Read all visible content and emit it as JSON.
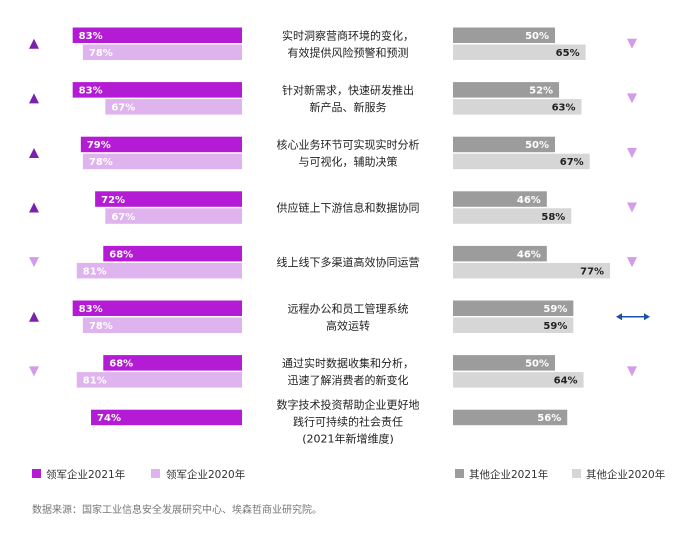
{
  "colors": {
    "leader_2021": "#B31BD4",
    "leader_2020": "#DEB3EE",
    "others_2021": "#9C9C9C",
    "others_2020": "#D6D6D6",
    "triangle": "#D39BEA",
    "triangle_solid": "#7A22B0",
    "arrow": "#1F4FA8"
  },
  "chart_data": {
    "type": "bar",
    "categories": [
      "实时洞察营商环境的变化，\n有效提供风险预警和预测",
      "针对新需求，快速研发推出\n新产品、新服务",
      "核心业务环节可实现实时分析\n与可视化，辅助决策",
      "供应链上下游信息和数据协同",
      "线上线下多渠道高效协同运营",
      "远程办公和员工管理系统\n高效运转",
      "通过实时数据收集和分析，\n迅速了解消费者的新变化",
      "数字技术投资帮助企业更好地\n践行可持续的社会责任\n(2021年新增维度)"
    ],
    "series": [
      {
        "name": "领军企业2021年",
        "values": [
          83,
          83,
          79,
          72,
          68,
          83,
          68,
          74
        ]
      },
      {
        "name": "领军企业2020年",
        "values": [
          78,
          67,
          78,
          67,
          81,
          78,
          81,
          null
        ]
      },
      {
        "name": "其他企业2021年",
        "values": [
          50,
          52,
          50,
          46,
          46,
          59,
          50,
          56
        ]
      },
      {
        "name": "其他企业2020年",
        "values": [
          65,
          63,
          67,
          58,
          77,
          59,
          64,
          null
        ]
      }
    ],
    "value_format": "{v}%",
    "left_indicators": [
      "up",
      "up",
      "up",
      "up",
      "down",
      "up",
      "down",
      null
    ],
    "right_indicators": [
      "down",
      "down",
      "down",
      "down",
      "down",
      "equal",
      "down",
      null
    ],
    "source": "数据来源：国家工业信息安全发展研究中心、埃森哲商业研究院。"
  }
}
